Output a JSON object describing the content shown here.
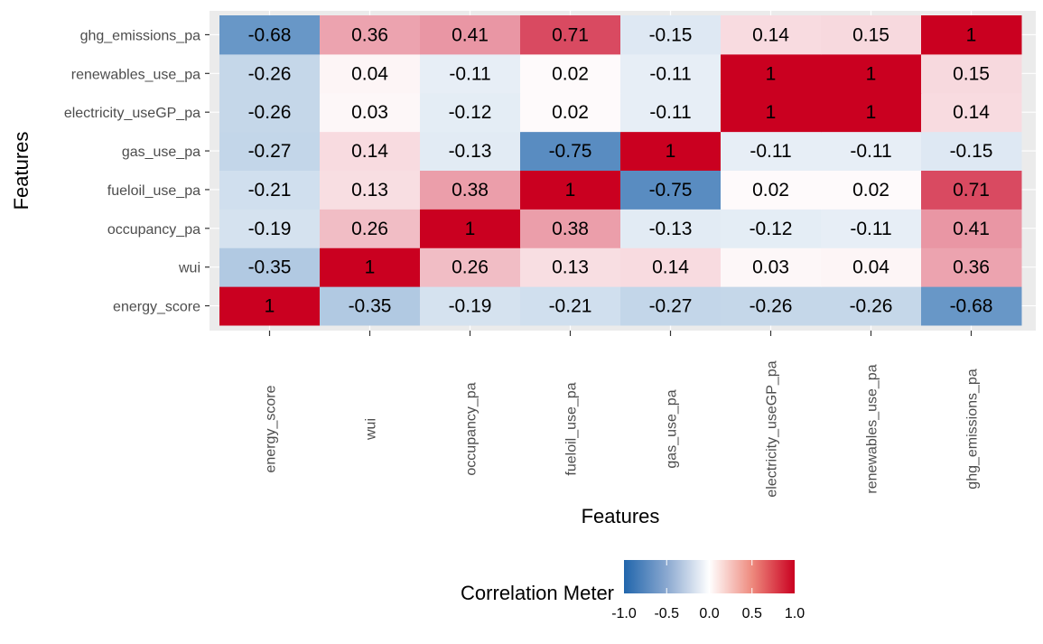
{
  "chart_data": {
    "type": "heatmap",
    "title": "",
    "xlabel": "Features",
    "ylabel": "Features",
    "x_categories": [
      "energy_score",
      "wui",
      "occupancy_pa",
      "fueloil_use_pa",
      "gas_use_pa",
      "electricity_useGP_pa",
      "renewables_use_pa",
      "ghg_emissions_pa"
    ],
    "y_categories_bottom_to_top": [
      "energy_score",
      "wui",
      "occupancy_pa",
      "fueloil_use_pa",
      "gas_use_pa",
      "electricity_useGP_pa",
      "renewables_use_pa",
      "ghg_emissions_pa"
    ],
    "values": [
      [
        1,
        -0.35,
        -0.19,
        -0.21,
        -0.27,
        -0.26,
        -0.26,
        -0.68
      ],
      [
        -0.35,
        1,
        0.26,
        0.13,
        0.14,
        0.03,
        0.04,
        0.36
      ],
      [
        -0.19,
        0.26,
        1,
        0.38,
        -0.13,
        -0.12,
        -0.11,
        0.41
      ],
      [
        -0.21,
        0.13,
        0.38,
        1,
        -0.75,
        0.02,
        0.02,
        0.71
      ],
      [
        -0.27,
        0.14,
        -0.13,
        -0.75,
        1,
        -0.11,
        -0.11,
        -0.15
      ],
      [
        -0.26,
        0.03,
        -0.12,
        0.02,
        -0.11,
        1,
        1,
        0.14
      ],
      [
        -0.26,
        0.04,
        -0.11,
        0.02,
        -0.11,
        1,
        1,
        0.15
      ],
      [
        -0.68,
        0.36,
        0.41,
        0.71,
        -0.15,
        0.14,
        0.15,
        1
      ]
    ],
    "values_note": "values[i][j] = correlation for row y_categories_bottom_to_top[i] and column x_categories[j]",
    "color_scale": {
      "low": "#2166AC",
      "mid": "#FFFFFF",
      "high": "#CA0020",
      "limits": [
        -1,
        1
      ]
    },
    "legend": {
      "title": "Correlation Meter",
      "ticks": [
        "-1.0",
        "-0.5",
        "0.0",
        "0.5",
        "1.0"
      ],
      "tick_values": [
        -1,
        -0.5,
        0,
        0.5,
        1
      ],
      "placement": "bottom"
    },
    "panel_background": "#EBEBEB",
    "grid": true
  }
}
